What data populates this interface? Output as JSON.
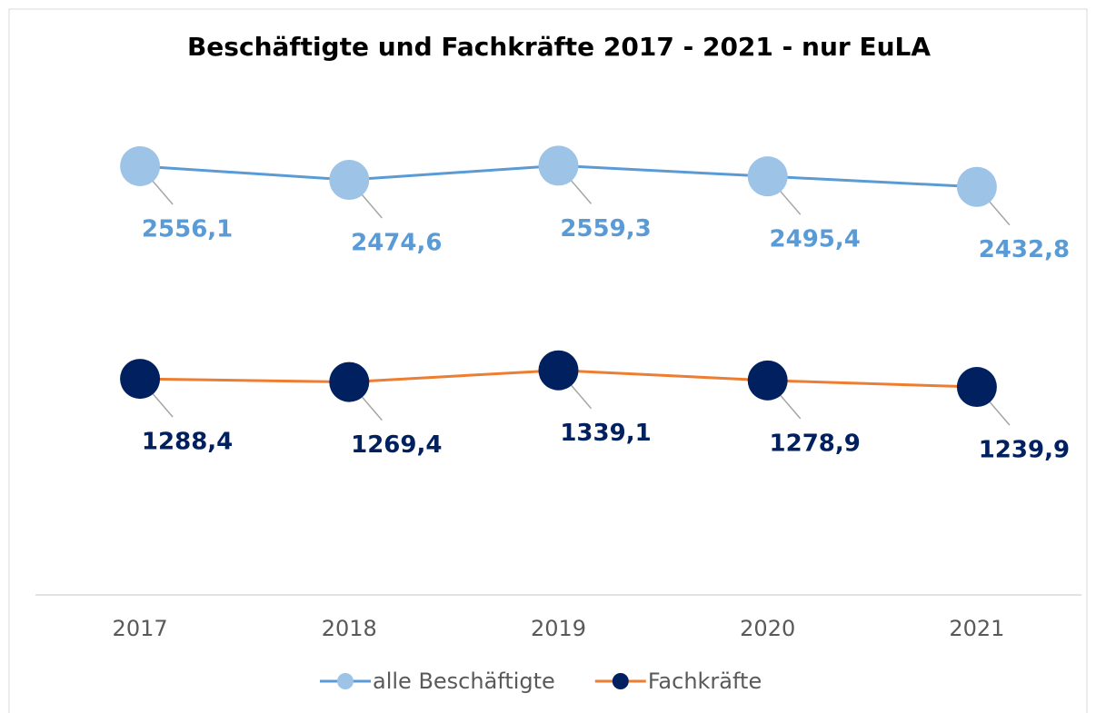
{
  "chart_data": {
    "type": "line",
    "title": "Beschäftigte und Fachkräfte 2017 - 2021 - nur EuLA",
    "categories": [
      "2017",
      "2018",
      "2019",
      "2020",
      "2021"
    ],
    "series": [
      {
        "name": "alle Beschäftigte",
        "color": "#5b9bd5",
        "marker_color": "#9dc3e6",
        "label_color": "#5b9bd5",
        "values": [
          2556.1,
          2474.6,
          2559.3,
          2495.4,
          2432.8
        ],
        "value_labels": [
          "2556,1",
          "2474,6",
          "2559,3",
          "2495,4",
          "2432,8"
        ]
      },
      {
        "name": "Fachkräfte",
        "color": "#ed7d31",
        "marker_color": "#002060",
        "label_color": "#002060",
        "values": [
          1288.4,
          1269.4,
          1339.1,
          1278.9,
          1239.9
        ],
        "value_labels": [
          "1288,4",
          "1269,4",
          "1339,1",
          "1278,9",
          "1239,9"
        ]
      }
    ],
    "ylim": [
      0,
      3000
    ],
    "legend": "bottom"
  }
}
